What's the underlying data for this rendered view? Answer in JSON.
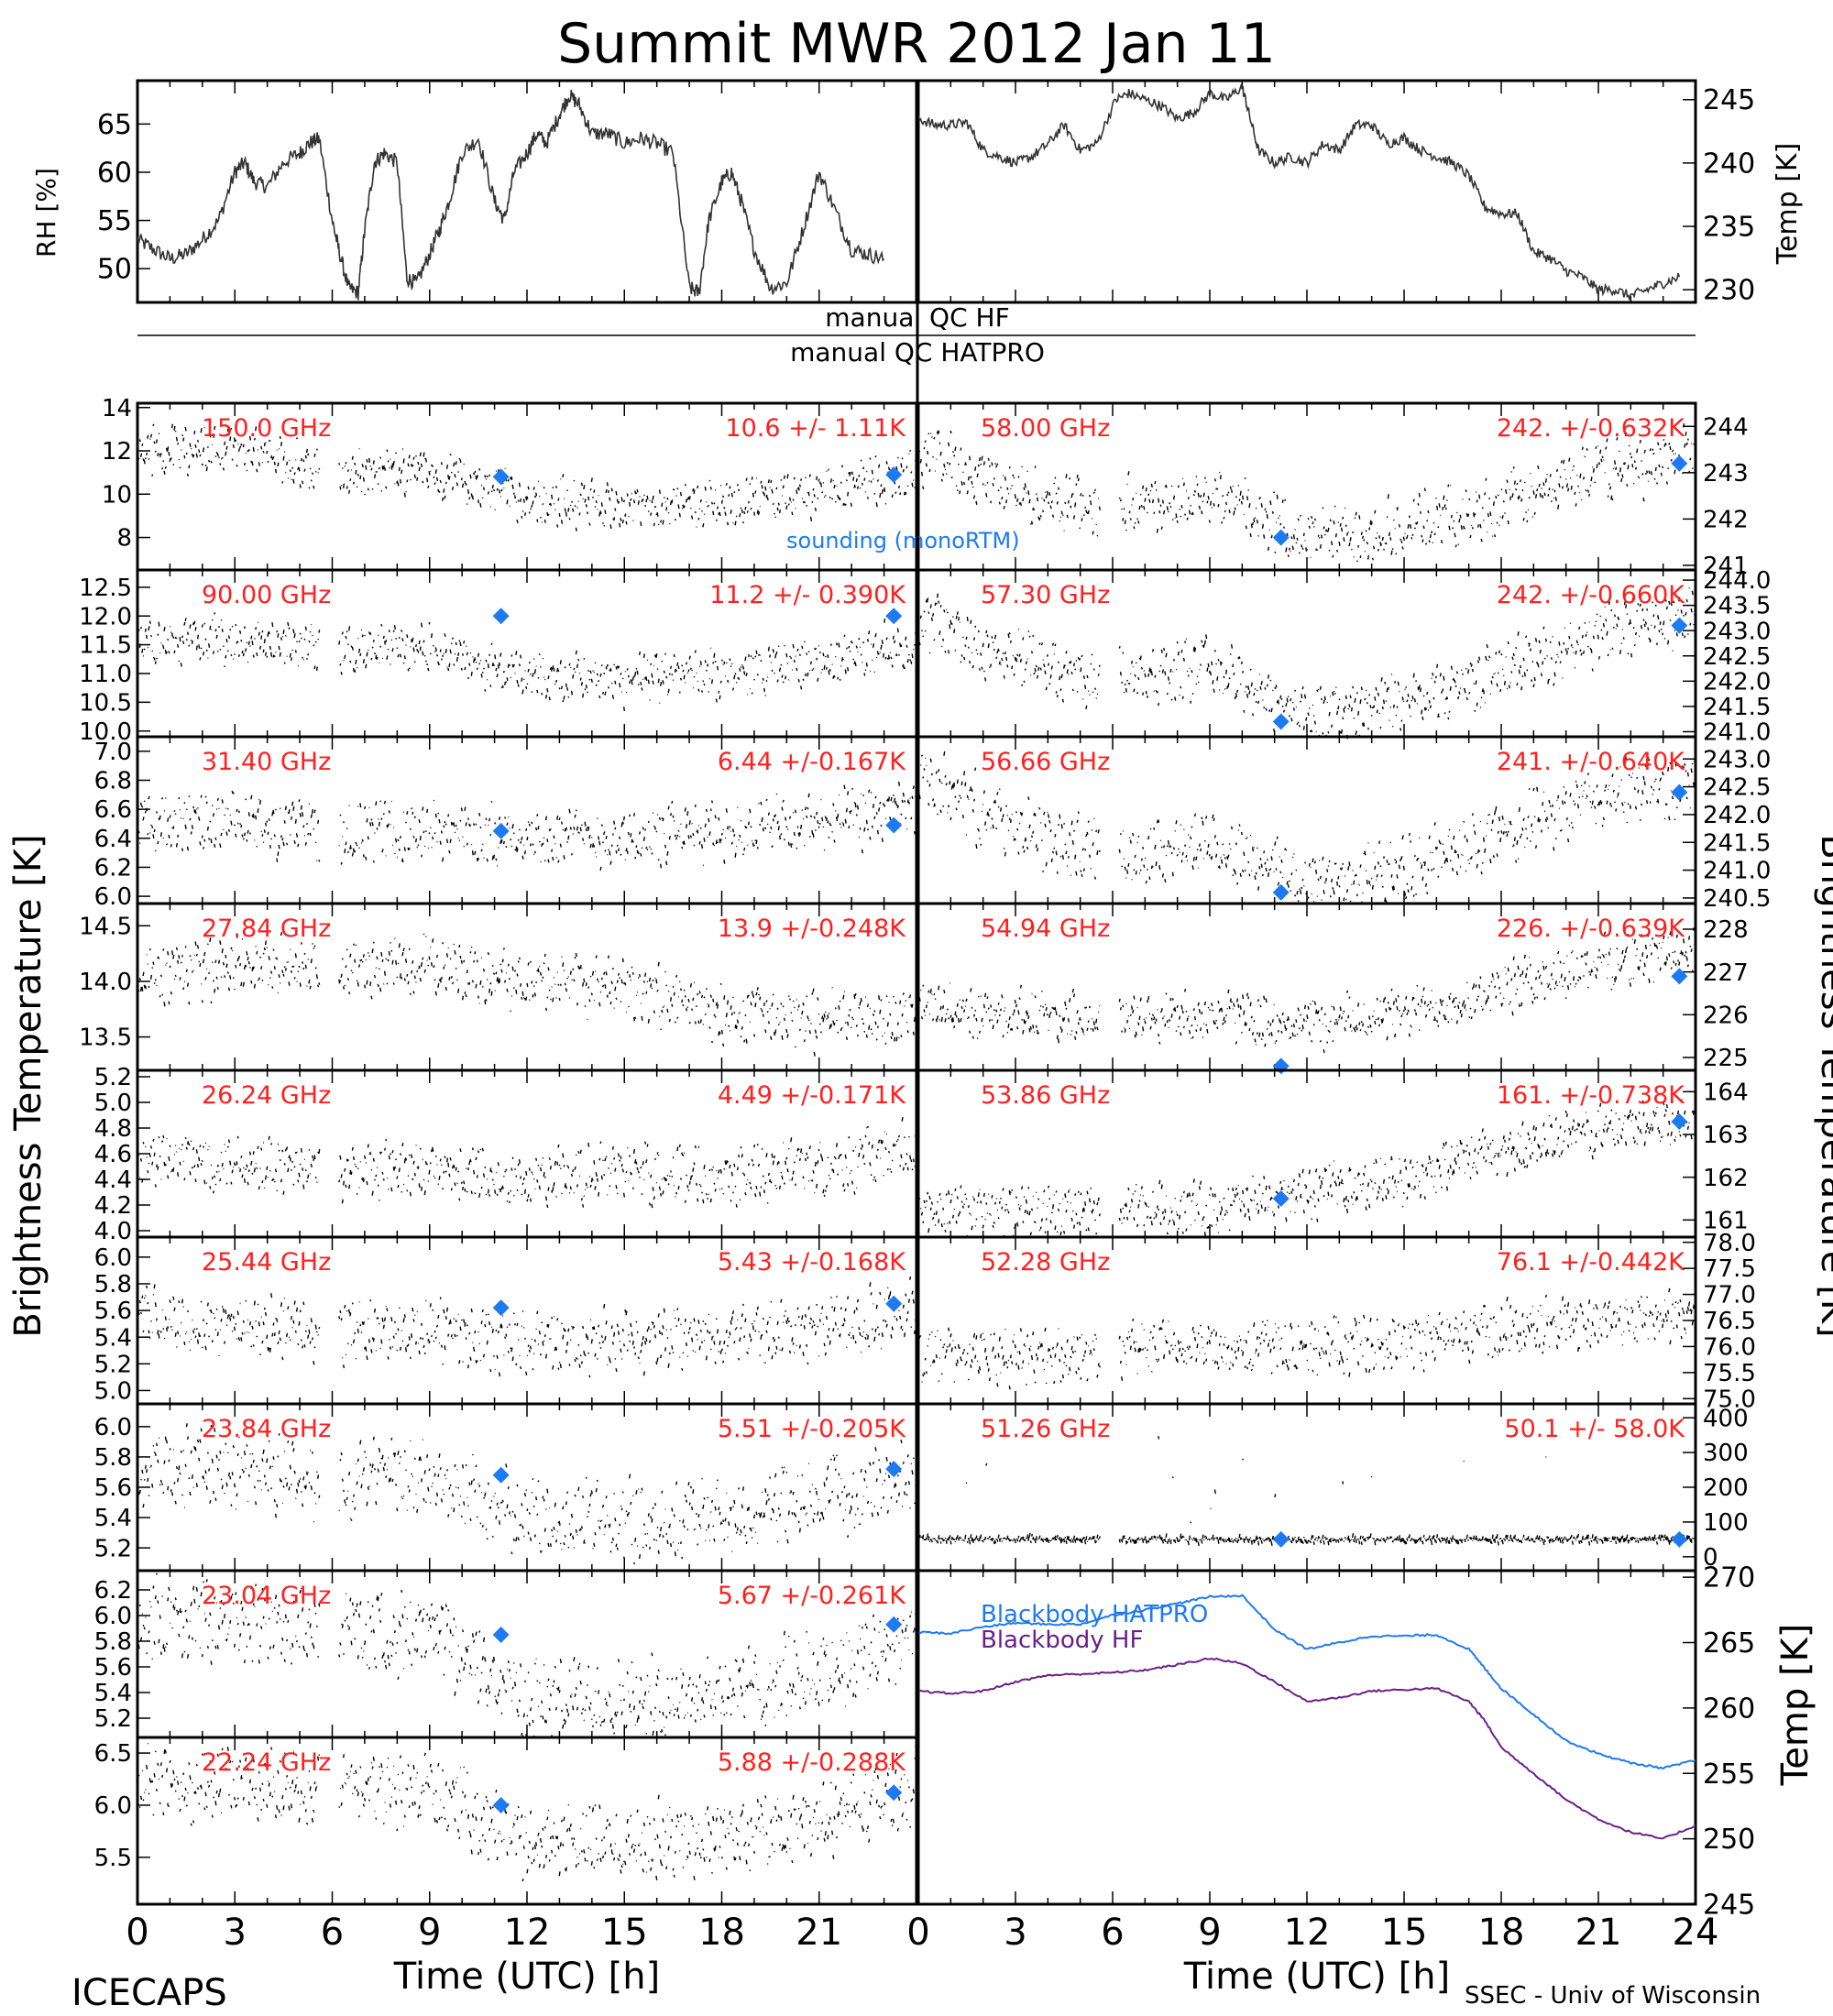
{
  "title": "Summit MWR 2012 Jan 11",
  "footer": {
    "left": "ICECAPS",
    "right": "SSEC - Univ of Wisconsin"
  },
  "xaxis": {
    "label": "Time (UTC) [h]",
    "ticks": [
      "0",
      "3",
      "6",
      "9",
      "12",
      "15",
      "18",
      "21",
      "24"
    ]
  },
  "ylabels": {
    "rh": "RH [%]",
    "temp_top": "Temp [K]",
    "tb": "Brightness Temperature [K]",
    "temp_bb": "Temp [K]"
  },
  "qc": {
    "hf": "manual QC HF",
    "hatpro": "manual QC HATPRO"
  },
  "legend": {
    "sounding": "sounding (monoRTM)",
    "bb_hatpro": "Blackbody HATPRO",
    "bb_hf": "Blackbody HF"
  },
  "colors": {
    "stat_text": "#ff2020",
    "sounding": "#1e7af0",
    "bb_hatpro": "#1e7af0",
    "bb_hf": "#6a1f8a",
    "trace": "#000000"
  },
  "chart_data": [
    {
      "id": "rh",
      "type": "line",
      "ylabel": "RH [%]",
      "ylim": [
        46.5,
        69.5
      ],
      "yticks": [
        "50",
        "55",
        "60",
        "65"
      ],
      "xlim": [
        0,
        24
      ],
      "x": [
        0,
        0.5,
        1,
        1.5,
        2,
        2.5,
        3,
        3.3,
        3.6,
        4,
        4.5,
        5,
        5.3,
        5.6,
        6,
        6.2,
        6.5,
        6.8,
        7,
        7.3,
        7.6,
        8,
        8.3,
        8.6,
        9,
        9.3,
        9.6,
        10,
        10.5,
        11,
        11.3,
        11.6,
        12,
        12.3,
        12.6,
        13,
        13.3,
        13.6,
        14,
        14.5,
        15,
        15.5,
        16,
        16.5,
        17,
        17.3,
        17.6,
        18,
        18.3,
        18.6,
        19,
        19.5,
        20,
        20.5,
        21,
        21.5,
        22,
        22.5,
        23
      ],
      "values": [
        53,
        52,
        51,
        51.5,
        53,
        55,
        60,
        61,
        59,
        58.5,
        61,
        62,
        63,
        63.5,
        55,
        52,
        48,
        47.5,
        54,
        61,
        62,
        61,
        49,
        48.5,
        51.5,
        54,
        57,
        62,
        63.5,
        57,
        55,
        60,
        62,
        64,
        63,
        66,
        68,
        67,
        64,
        64,
        63,
        63.5,
        63,
        62,
        48,
        47.5,
        55,
        59,
        60,
        57,
        52,
        48,
        48.5,
        54,
        60,
        56,
        52,
        51.5,
        51
      ]
    },
    {
      "id": "temp_top",
      "type": "line",
      "ylabel": "Temp [K]",
      "ylim": [
        229,
        246.5
      ],
      "yticks": [
        "230",
        "235",
        "240",
        "245"
      ],
      "xlim": [
        0,
        24
      ],
      "x": [
        0,
        0.5,
        1,
        1.5,
        2,
        2.5,
        3,
        3.5,
        4,
        4.5,
        5,
        5.5,
        6.1,
        6.5,
        7,
        7.5,
        8,
        8.5,
        9,
        9.5,
        10,
        10.2,
        10.5,
        11,
        11.5,
        12,
        12.5,
        13,
        13.5,
        14,
        14.5,
        15,
        15.5,
        16,
        16.5,
        17,
        17.5,
        18,
        18.5,
        19,
        19.5,
        20,
        20.5,
        21,
        21.5,
        22,
        22.5,
        23,
        23.5
      ],
      "values": [
        243.5,
        243,
        243,
        243.2,
        241,
        240.5,
        240,
        240.5,
        241.5,
        243,
        241,
        241.5,
        245,
        245.5,
        245,
        244.5,
        243.5,
        244,
        245.5,
        245,
        246,
        244,
        241,
        240,
        240.5,
        240,
        241.5,
        241,
        243,
        243,
        241.5,
        242,
        241,
        240.5,
        240,
        239,
        236.5,
        236,
        236,
        233,
        232.5,
        231.5,
        231,
        230,
        230,
        229.5,
        230,
        230.5,
        231
      ]
    },
    {
      "id": "bb",
      "type": "line",
      "ylabel": "Temp [K]",
      "ylim": [
        245,
        270.5
      ],
      "yticks": [
        "245",
        "250",
        "255",
        "260",
        "265",
        "270"
      ],
      "xlim": [
        0,
        24
      ],
      "series": [
        {
          "name": "Blackbody HATPRO",
          "color": "#1e7af0",
          "x": [
            0,
            1,
            2,
            3,
            4,
            5,
            6,
            7,
            8,
            9,
            10,
            11,
            12,
            13,
            14,
            15,
            16,
            17,
            17.5,
            18,
            19,
            20,
            21,
            22,
            23,
            24
          ],
          "values": [
            265.8,
            265.7,
            266.2,
            266.5,
            266.4,
            266.4,
            267.1,
            267.5,
            268,
            268.5,
            268.6,
            266,
            264.5,
            265,
            265.5,
            265.5,
            265.6,
            264.5,
            263,
            261.5,
            259.5,
            257.5,
            256.5,
            255.8,
            255.4,
            256
          ]
        },
        {
          "name": "Blackbody HF",
          "color": "#6a1f8a",
          "x": [
            0,
            1,
            2,
            3,
            4,
            5,
            6,
            7,
            8,
            9,
            10,
            11,
            12,
            13,
            14,
            15,
            16,
            17,
            17.5,
            18,
            19,
            20,
            21,
            22,
            23,
            24
          ],
          "values": [
            261.3,
            261.1,
            261.3,
            262,
            262.5,
            262.6,
            262.7,
            262.9,
            263.3,
            263.8,
            263.4,
            262,
            260.5,
            260.8,
            261.3,
            261.4,
            261.5,
            260.5,
            259,
            257,
            255,
            253,
            251.5,
            250.5,
            250,
            251
          ]
        }
      ]
    },
    {
      "id": "tb_left",
      "type": "scatter",
      "xlim": [
        0,
        24
      ],
      "panels": [
        {
          "freq": "150.0 GHz",
          "stat": "10.6 +/- 1.11K",
          "ylim": [
            6.5,
            14.2
          ],
          "yticks": [
            "8",
            "10",
            "12",
            "14"
          ],
          "sounding": [
            [
              11.2,
              10.8
            ],
            [
              23.3,
              10.9
            ]
          ],
          "trend_x": [
            0,
            3,
            6,
            9,
            12,
            15,
            18,
            21,
            24
          ],
          "trend": [
            12,
            12.2,
            11,
            11,
            9.8,
            9.5,
            9.6,
            10,
            11
          ],
          "noise": 1.8
        },
        {
          "freq": "90.00 GHz",
          "stat": "11.2 +/- 0.390K",
          "ylim": [
            9.9,
            12.8
          ],
          "yticks": [
            "10.0",
            "10.5",
            "11.0",
            "11.5",
            "12.0",
            "12.5"
          ],
          "sounding": [
            [
              11.2,
              12.0
            ],
            [
              23.3,
              12.0
            ]
          ],
          "trend_x": [
            0,
            3,
            6,
            9,
            12,
            15,
            18,
            21,
            24
          ],
          "trend": [
            11.5,
            11.6,
            11.4,
            11.5,
            10.9,
            10.9,
            11,
            11.2,
            11.5
          ],
          "noise": 0.7
        },
        {
          "freq": "31.40 GHz",
          "stat": "6.44 +/-0.167K",
          "ylim": [
            5.95,
            7.1
          ],
          "yticks": [
            "6.0",
            "6.2",
            "6.4",
            "6.6",
            "6.8",
            "7.0"
          ],
          "sounding": [
            [
              11.2,
              6.45
            ],
            [
              23.3,
              6.49
            ]
          ],
          "trend_x": [
            0,
            3,
            6,
            9,
            12,
            15,
            18,
            21,
            24
          ],
          "trend": [
            6.5,
            6.5,
            6.45,
            6.45,
            6.4,
            6.4,
            6.45,
            6.5,
            6.6
          ],
          "noise": 0.35
        },
        {
          "freq": "27.84 GHz",
          "stat": "13.9 +/-0.248K",
          "ylim": [
            13.2,
            14.7
          ],
          "yticks": [
            "13.5",
            "14.0",
            "14.5"
          ],
          "sounding": [],
          "trend_x": [
            0,
            3,
            6,
            9,
            12,
            15,
            18,
            21,
            24
          ],
          "trend": [
            14.05,
            14.15,
            14.1,
            14.15,
            14,
            13.95,
            13.7,
            13.65,
            13.7
          ],
          "noise": 0.45
        },
        {
          "freq": "26.24 GHz",
          "stat": "4.49 +/-0.171K",
          "ylim": [
            3.95,
            5.25
          ],
          "yticks": [
            "4.0",
            "4.2",
            "4.4",
            "4.6",
            "4.8",
            "5.0",
            "5.2"
          ],
          "sounding": [],
          "trend_x": [
            0,
            3,
            6,
            9,
            12,
            15,
            18,
            21,
            24
          ],
          "trend": [
            4.55,
            4.55,
            4.45,
            4.45,
            4.4,
            4.45,
            4.45,
            4.5,
            4.65
          ],
          "noise": 0.4
        },
        {
          "freq": "25.44 GHz",
          "stat": "5.43 +/-0.168K",
          "ylim": [
            4.9,
            6.15
          ],
          "yticks": [
            "5.0",
            "5.2",
            "5.4",
            "5.6",
            "5.8",
            "6.0"
          ],
          "sounding": [
            [
              11.2,
              5.62
            ],
            [
              23.3,
              5.65
            ]
          ],
          "trend_x": [
            0,
            3,
            6,
            9,
            12,
            15,
            18,
            21,
            24
          ],
          "trend": [
            5.55,
            5.5,
            5.45,
            5.45,
            5.35,
            5.35,
            5.4,
            5.45,
            5.6
          ],
          "noise": 0.4
        },
        {
          "freq": "23.84 GHz",
          "stat": "5.51 +/-0.205K",
          "ylim": [
            5.05,
            6.15
          ],
          "yticks": [
            "5.0",
            "5.2",
            "5.4",
            "5.6",
            "5.8",
            "6.0"
          ],
          "sounding": [
            [
              11.2,
              5.68
            ],
            [
              23.3,
              5.72
            ]
          ],
          "trend_x": [
            0,
            3,
            6,
            9,
            12,
            15,
            18,
            21,
            24
          ],
          "trend": [
            5.75,
            5.72,
            5.65,
            5.65,
            5.4,
            5.38,
            5.4,
            5.5,
            5.7
          ],
          "noise": 0.45
        },
        {
          "freq": "23.04 GHz",
          "stat": "5.67 +/-0.261K",
          "ylim": [
            5.05,
            6.35
          ],
          "yticks": [
            "5.2",
            "5.4",
            "5.6",
            "5.8",
            "6.0",
            "6.2"
          ],
          "sounding": [
            [
              11.2,
              5.85
            ],
            [
              23.3,
              5.93
            ]
          ],
          "trend_x": [
            0,
            3,
            6,
            9,
            12,
            15,
            18,
            21,
            24
          ],
          "trend": [
            5.95,
            5.95,
            5.9,
            5.85,
            5.35,
            5.35,
            5.4,
            5.55,
            5.9
          ],
          "noise": 0.55
        },
        {
          "freq": "22.24 GHz",
          "stat": "5.88 +/-0.288K",
          "ylim": [
            5.05,
            6.65
          ],
          "yticks": [
            "5.5",
            "6.0",
            "6.5"
          ],
          "sounding": [
            [
              11.2,
              6.0
            ],
            [
              23.3,
              6.12
            ]
          ],
          "trend_x": [
            0,
            3,
            6,
            9,
            12,
            15,
            18,
            21,
            24
          ],
          "trend": [
            6.2,
            6.2,
            6.15,
            6.15,
            5.65,
            5.65,
            5.7,
            5.85,
            6.2
          ],
          "noise": 0.6
        }
      ]
    },
    {
      "id": "tb_right",
      "type": "scatter",
      "xlim": [
        0,
        24
      ],
      "panels": [
        {
          "freq": "58.00 GHz",
          "stat": "242. +/-0.632K",
          "ylim": [
            240.9,
            244.5
          ],
          "yticks": [
            "241",
            "242",
            "243",
            "244"
          ],
          "sounding": [
            [
              11.2,
              241.6
            ],
            [
              23.5,
              243.2
            ]
          ],
          "trend_x": [
            0,
            3,
            6,
            9,
            12,
            15,
            18,
            21,
            24
          ],
          "trend": [
            243.5,
            242.6,
            242.2,
            242.6,
            241.6,
            241.8,
            242.3,
            243,
            243.4
          ],
          "noise": 1.1
        },
        {
          "freq": "57.30 GHz",
          "stat": "242. +/-0.660K",
          "ylim": [
            240.9,
            244.2
          ],
          "yticks": [
            "241.0",
            "241.5",
            "242.0",
            "242.5",
            "243.0",
            "243.5",
            "244.0"
          ],
          "sounding": [
            [
              11.2,
              241.2
            ],
            [
              23.5,
              243.1
            ]
          ],
          "trend_x": [
            0,
            3,
            6,
            9,
            12,
            15,
            18,
            21,
            24
          ],
          "trend": [
            243.3,
            242.4,
            242,
            242.3,
            241.3,
            241.6,
            242.2,
            242.9,
            243.3
          ],
          "noise": 1.0
        },
        {
          "freq": "56.66 GHz",
          "stat": "241. +/-0.640K",
          "ylim": [
            240.4,
            243.4
          ],
          "yticks": [
            "240.5",
            "241.0",
            "241.5",
            "242.0",
            "242.5",
            "243.0"
          ],
          "sounding": [
            [
              11.2,
              240.6
            ],
            [
              23.5,
              242.4
            ]
          ],
          "trend_x": [
            0,
            3,
            6,
            9,
            12,
            15,
            18,
            21,
            24
          ],
          "trend": [
            242.7,
            241.7,
            241.3,
            241.5,
            240.8,
            241,
            241.6,
            242.3,
            242.6
          ],
          "noise": 1.0
        },
        {
          "freq": "54.94 GHz",
          "stat": "226. +/-0.639K",
          "ylim": [
            224.7,
            228.6
          ],
          "yticks": [
            "225",
            "226",
            "227",
            "228"
          ],
          "sounding": [
            [
              11.2,
              224.8
            ],
            [
              23.5,
              226.9
            ]
          ],
          "trend_x": [
            0,
            3,
            6,
            9,
            12,
            15,
            18,
            21,
            24
          ],
          "trend": [
            226.2,
            226,
            225.9,
            226,
            225.8,
            226,
            226.6,
            227.2,
            227.5
          ],
          "noise": 1.0
        },
        {
          "freq": "53.86 GHz",
          "stat": "161. +/-0.738K",
          "ylim": [
            160.6,
            164.5
          ],
          "yticks": [
            "161",
            "162",
            "163",
            "164"
          ],
          "sounding": [
            [
              11.2,
              161.5
            ],
            [
              23.5,
              163.3
            ]
          ],
          "trend_x": [
            0,
            3,
            6,
            9,
            12,
            15,
            18,
            21,
            24
          ],
          "trend": [
            161.2,
            161.2,
            161.2,
            161.3,
            161.6,
            162,
            162.6,
            163.1,
            163.4
          ],
          "noise": 1.0
        },
        {
          "freq": "52.28 GHz",
          "stat": "76.1 +/-0.442K",
          "ylim": [
            74.9,
            78.1
          ],
          "yticks": [
            "75.0",
            "75.5",
            "76.0",
            "76.5",
            "77.0",
            "77.5",
            "78.0"
          ],
          "sounding": [],
          "trend_x": [
            0,
            3,
            6,
            9,
            12,
            15,
            18,
            21,
            24
          ],
          "trend": [
            75.9,
            75.8,
            75.9,
            76,
            76,
            76.1,
            76.3,
            76.5,
            76.6
          ],
          "noise": 0.9
        },
        {
          "freq": "51.26 GHz",
          "stat": "50.1 +/- 58.0K",
          "ylim": [
            -40,
            440
          ],
          "yticks": [
            "0",
            "100",
            "200",
            "300",
            "400"
          ],
          "sounding": [
            [
              11.2,
              50
            ],
            [
              23.5,
              50
            ]
          ],
          "trend_x": [
            0,
            24
          ],
          "trend": [
            50,
            50
          ],
          "noise": 10
        }
      ]
    }
  ]
}
